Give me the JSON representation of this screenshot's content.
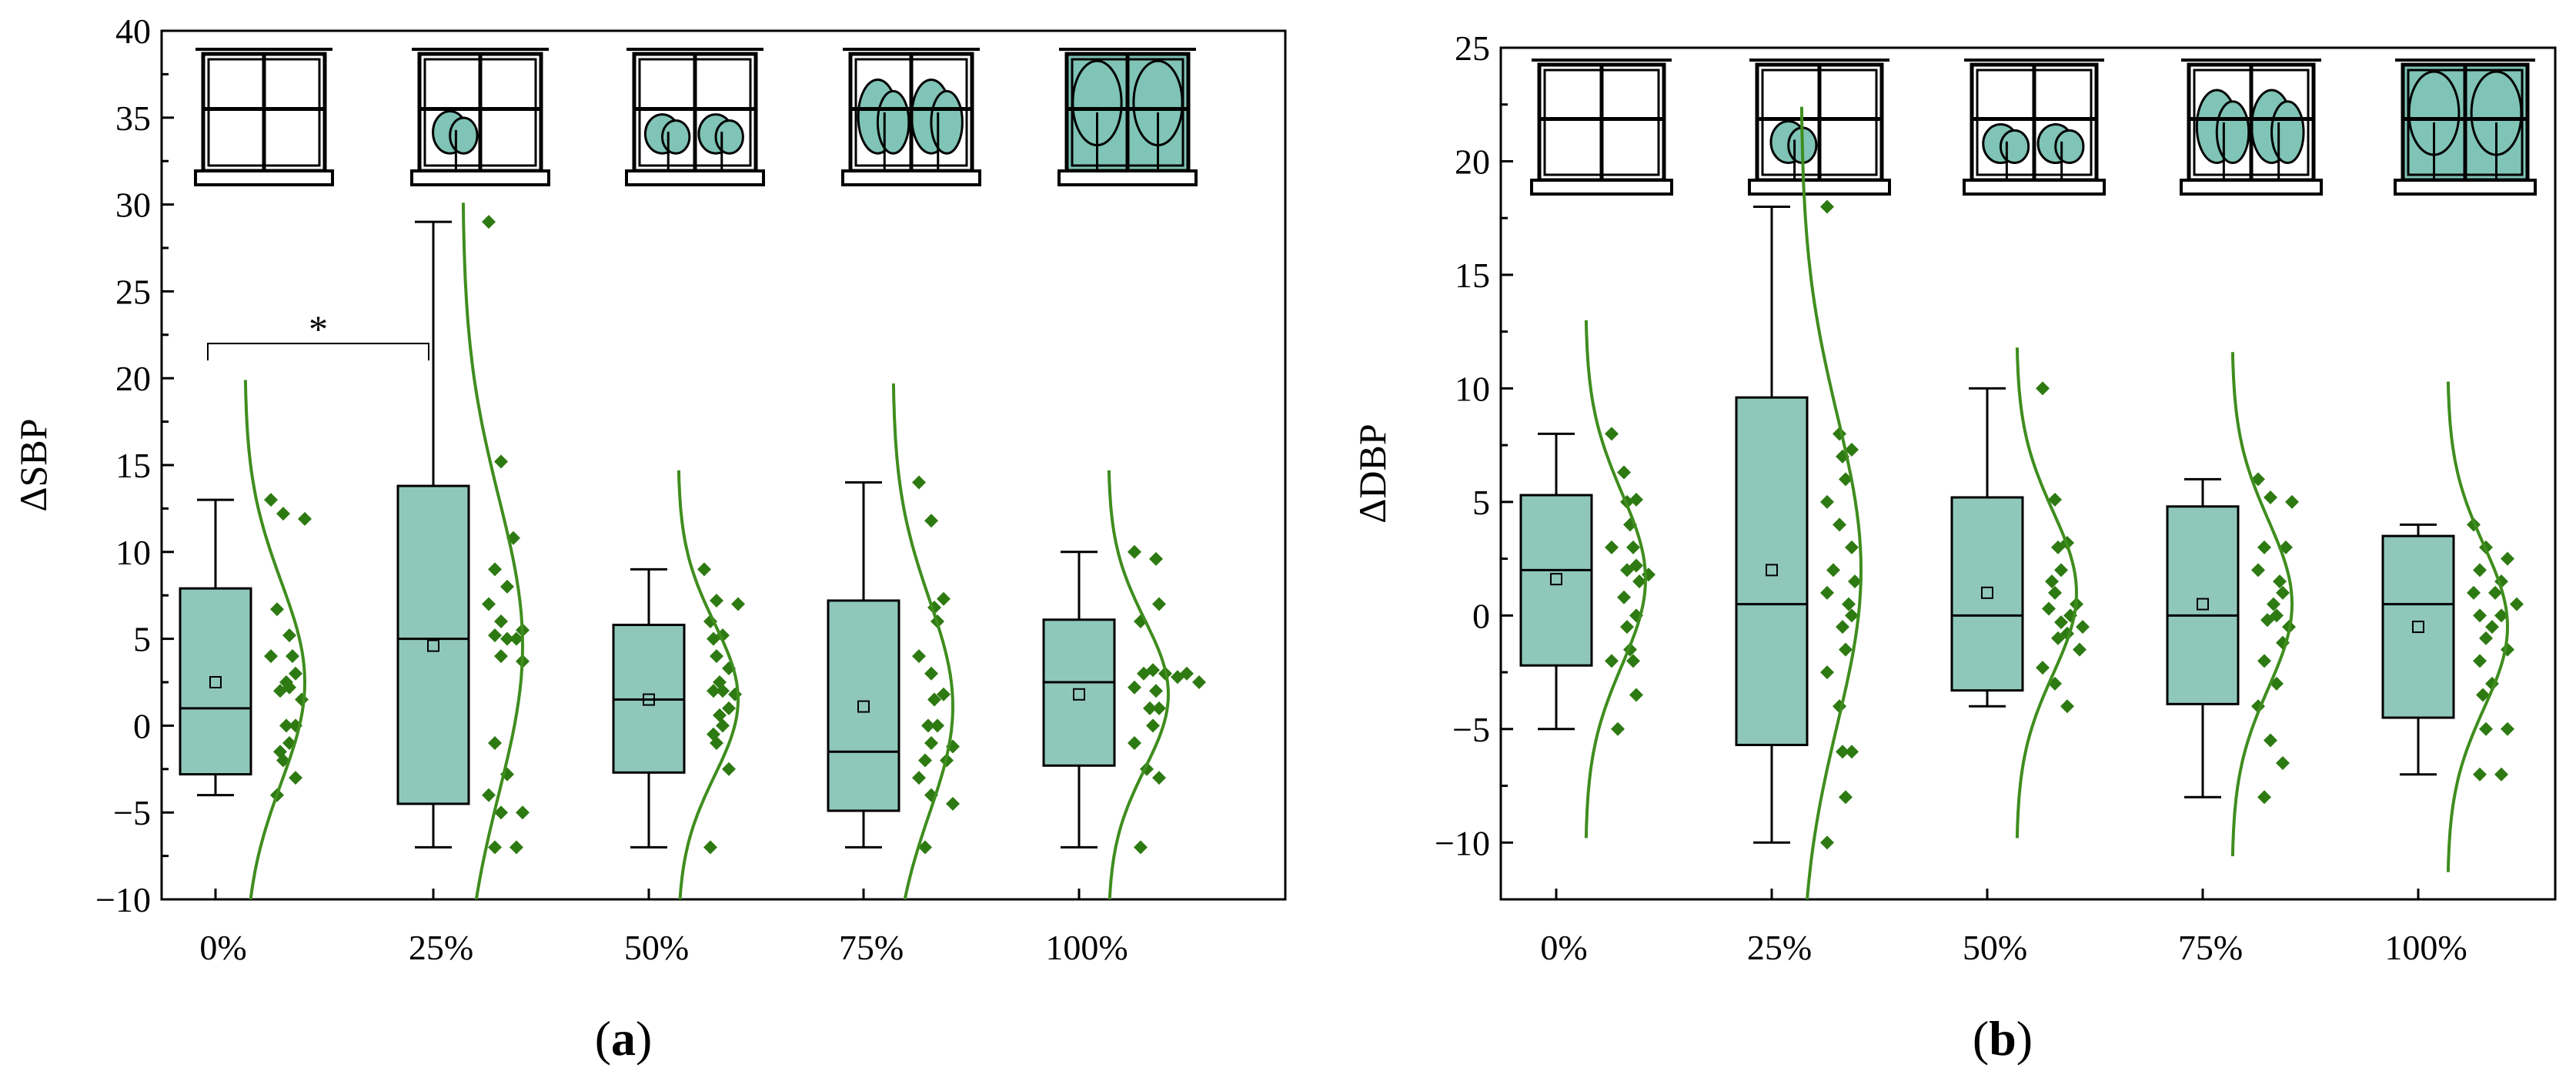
{
  "colors": {
    "box_fill": "#8fc7bb",
    "point": "#2e7a12",
    "curve": "#3f8d1e",
    "axis": "#000000",
    "window_glass": "#7fc4b6"
  },
  "icons": [
    "window-0pct-icon",
    "window-25pct-icon",
    "window-50pct-icon",
    "window-75pct-icon",
    "window-100pct-icon"
  ],
  "chart_data": [
    {
      "type": "box",
      "panel_label": "a",
      "ylabel": "ΔSBP",
      "xlabel": "",
      "ylim": [
        -10,
        40
      ],
      "yticks": [
        -10,
        -5,
        0,
        5,
        10,
        15,
        20,
        25,
        30,
        35,
        40
      ],
      "ytick_labels": [
        "−10",
        "−5",
        "0",
        "5",
        "10",
        "15",
        "20",
        "25",
        "30",
        "35",
        "40"
      ],
      "categories": [
        "0%",
        "25%",
        "50%",
        "75%",
        "100%"
      ],
      "greenery": [
        0,
        0.25,
        0.5,
        0.75,
        1.0
      ],
      "boxes": [
        {
          "whisker_low": -4,
          "q1": -2.8,
          "median": 1,
          "q3": 7.9,
          "whisker_high": 13,
          "mean": 2.5
        },
        {
          "whisker_low": -7,
          "q1": -4.5,
          "median": 5,
          "q3": 13.8,
          "whisker_high": 29,
          "mean": 4.6
        },
        {
          "whisker_low": -7,
          "q1": -2.7,
          "median": 1.5,
          "q3": 5.8,
          "whisker_high": 9,
          "mean": 1.5
        },
        {
          "whisker_low": -7,
          "q1": -4.9,
          "median": -1.5,
          "q3": 7.2,
          "whisker_high": 14,
          "mean": 1.1
        },
        {
          "whisker_low": -7,
          "q1": -2.3,
          "median": 2.5,
          "q3": 6.1,
          "whisker_high": 10,
          "mean": 1.8
        }
      ],
      "points": [
        [
          13,
          12.2,
          11.9,
          6.7,
          5.2,
          4,
          4,
          3,
          2.5,
          2.2,
          2,
          1.5,
          0,
          0,
          -1,
          -1.5,
          -2,
          -3,
          -4
        ],
        [
          29,
          15.2,
          10.8,
          9,
          8,
          7,
          6,
          5.5,
          5.2,
          5,
          5,
          4,
          3.7,
          -1,
          -2.8,
          -4,
          -5,
          -5,
          -7,
          -7
        ],
        [
          9,
          7.2,
          7,
          6,
          5.2,
          5,
          4,
          3.3,
          2.5,
          2,
          2,
          1.8,
          1,
          0.6,
          0,
          -0.5,
          -1,
          -2.5,
          -7
        ],
        [
          14,
          11.8,
          7.3,
          6.8,
          6,
          4,
          3,
          1.8,
          1.5,
          0,
          0,
          -1,
          -1.2,
          -2,
          -2,
          -3,
          -4,
          -4.5,
          -7
        ],
        [
          10,
          9.6,
          7,
          6,
          3.2,
          3,
          3,
          3,
          2.8,
          2.5,
          2.2,
          2,
          1,
          1,
          0,
          -1,
          -2.5,
          -3,
          -7
        ]
      ],
      "distribution": [
        {
          "mean": 2.5,
          "sd": 5.8
        },
        {
          "mean": 4.6,
          "sd": 8.5
        },
        {
          "mean": 1.5,
          "sd": 4.4
        },
        {
          "mean": 1.1,
          "sd": 6.2
        },
        {
          "mean": 1.8,
          "sd": 4.3
        }
      ],
      "significance": [
        {
          "from": 0,
          "to": 1,
          "y": 22,
          "label": "*"
        }
      ]
    },
    {
      "type": "box",
      "panel_label": "b",
      "ylabel": "ΔDBP",
      "xlabel": "",
      "ylim": [
        -12.5,
        25
      ],
      "yticks": [
        -10,
        -5,
        0,
        5,
        10,
        15,
        20,
        25
      ],
      "ytick_labels": [
        "−10",
        "−5",
        "0",
        "5",
        "10",
        "15",
        "20",
        "25"
      ],
      "categories": [
        "0%",
        "25%",
        "50%",
        "75%",
        "100%"
      ],
      "greenery": [
        0,
        0.25,
        0.5,
        0.75,
        1.0
      ],
      "boxes": [
        {
          "whisker_low": -5,
          "q1": -2.2,
          "median": 2,
          "q3": 5.3,
          "whisker_high": 8,
          "mean": 1.6
        },
        {
          "whisker_low": -10,
          "q1": -5.7,
          "median": 0.5,
          "q3": 9.6,
          "whisker_high": 18,
          "mean": 2
        },
        {
          "whisker_low": -4,
          "q1": -3.3,
          "median": 0,
          "q3": 5.2,
          "whisker_high": 10,
          "mean": 1
        },
        {
          "whisker_low": -8,
          "q1": -3.9,
          "median": 0,
          "q3": 4.8,
          "whisker_high": 6,
          "mean": 0.5
        },
        {
          "whisker_low": -7,
          "q1": -4.5,
          "median": 0.5,
          "q3": 3.5,
          "whisker_high": 4,
          "mean": -0.5
        }
      ],
      "points": [
        [
          8,
          6.3,
          5.1,
          5,
          4,
          3,
          3,
          2.2,
          2,
          1.8,
          1.5,
          0.8,
          0,
          -0.5,
          -1.5,
          -2,
          -2,
          -3.5,
          -5
        ],
        [
          18,
          8,
          7.3,
          7,
          6,
          5,
          4,
          3,
          2,
          1.5,
          1,
          0.5,
          0,
          -0.5,
          -1.5,
          -2.5,
          -4,
          -6,
          -6,
          -8,
          -10
        ],
        [
          10,
          5.1,
          3.2,
          3,
          2,
          1.5,
          1,
          0.5,
          0.3,
          0,
          -0.3,
          -0.5,
          -0.8,
          -1,
          -1.5,
          -2.3,
          -3,
          -4
        ],
        [
          6,
          5.2,
          5,
          3,
          3,
          2,
          1.5,
          1,
          0.5,
          0,
          -0.2,
          -0.5,
          -1.2,
          -2,
          -3,
          -4,
          -5.5,
          -6.5,
          -8
        ],
        [
          4,
          3,
          2.5,
          2,
          1.5,
          1,
          1,
          0.5,
          0,
          0,
          -0.5,
          -1,
          -1.5,
          -2,
          -3,
          -3.5,
          -5,
          -5,
          -7,
          -7
        ]
      ],
      "distribution": [
        {
          "mean": 1.6,
          "sd": 3.8
        },
        {
          "mean": 2,
          "sd": 6.8
        },
        {
          "mean": 1,
          "sd": 3.6
        },
        {
          "mean": 0.5,
          "sd": 3.7
        },
        {
          "mean": -0.5,
          "sd": 3.6
        }
      ],
      "significance": []
    }
  ]
}
